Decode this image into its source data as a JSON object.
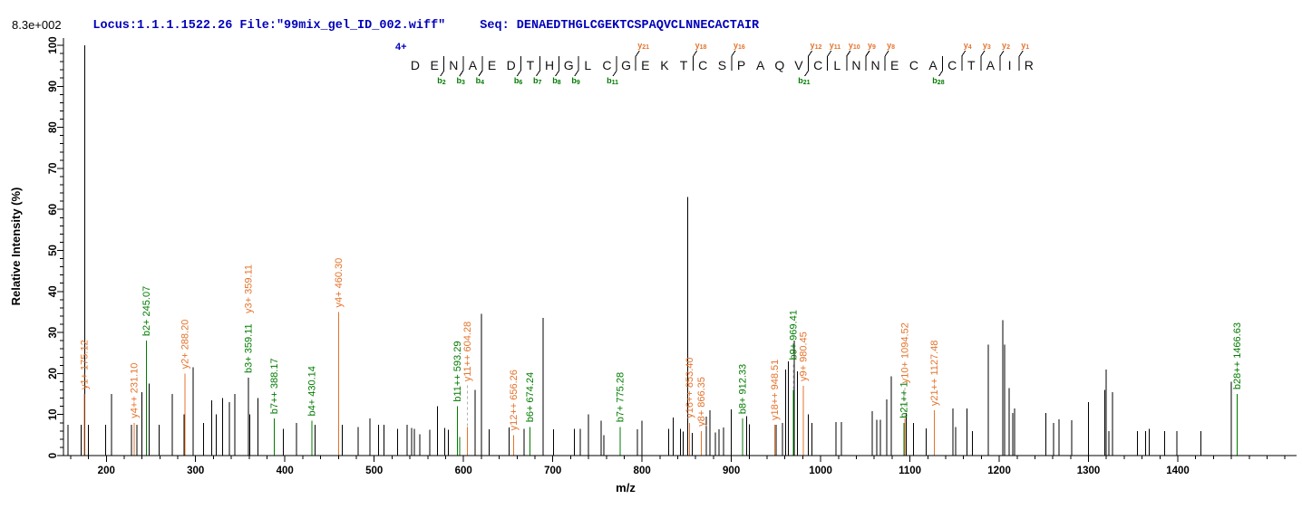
{
  "header": {
    "locus": "Locus:1.1.1.1522.26 File:\"99mix_gel_ID_002.wiff\"",
    "seq_prefix": "Seq: "
  },
  "scale_label": "8.3e+002",
  "charge_label": "4+",
  "colors": {
    "b_ion": "#007b00",
    "y_ion": "#e4732c",
    "peak": "#000000",
    "header_text": "#0000bb",
    "dash_connector": "#b0b0b0",
    "axis": "#000000"
  },
  "chart_data": {
    "type": "bar",
    "title": "8.3e+002",
    "xlabel": "m/z",
    "ylabel": "Relative  Intensity (%)",
    "xlim": [
      152,
      1533
    ],
    "ylim": [
      0,
      100
    ],
    "x_major_ticks": [
      200,
      300,
      400,
      500,
      600,
      700,
      800,
      900,
      1000,
      1100,
      1200,
      1300,
      1400
    ],
    "x_minor_step": 20,
    "y_major_ticks": [
      0,
      10,
      20,
      30,
      40,
      50,
      60,
      70,
      80,
      90,
      100
    ],
    "y_minor_step": 2,
    "grid": false,
    "precursor_charge": "4+",
    "sequence": "DENAEDTHGLCGEKTCSPAQVCLNNECACTAIR",
    "fragment_markers": [
      {
        "after": 2,
        "b": "b2"
      },
      {
        "after": 3,
        "b": "b3"
      },
      {
        "after": 4,
        "b": "b4"
      },
      {
        "after": 6,
        "b": "b6"
      },
      {
        "after": 7,
        "b": "b7"
      },
      {
        "after": 8,
        "b": "b8"
      },
      {
        "after": 9,
        "b": "b9"
      },
      {
        "after": 11,
        "b": "b11"
      },
      {
        "after": 12,
        "y": "y21"
      },
      {
        "after": 15,
        "y": "y18"
      },
      {
        "after": 17,
        "y": "y16"
      },
      {
        "after": 21,
        "b": "b21",
        "y": "y12"
      },
      {
        "after": 22,
        "y": "y11"
      },
      {
        "after": 23,
        "y": "y10"
      },
      {
        "after": 24,
        "y": "y9"
      },
      {
        "after": 25,
        "y": "y8"
      },
      {
        "after": 28,
        "b": "b28"
      },
      {
        "after": 29,
        "y": "y4"
      },
      {
        "after": 30,
        "y": "y3"
      },
      {
        "after": 31,
        "y": "y2"
      },
      {
        "after": 32,
        "y": "y1"
      }
    ],
    "labeled_peaks": [
      {
        "mz": 175.12,
        "intensity": 15,
        "label": "y1+ 175.12",
        "type": "y"
      },
      {
        "mz": 231.1,
        "intensity": 8,
        "label": "y4++ 231.10",
        "type": "y"
      },
      {
        "mz": 245.07,
        "intensity": 28,
        "label": "b2+ 245.07",
        "type": "b"
      },
      {
        "mz": 288.2,
        "intensity": 20,
        "label": "y2+ 288.20",
        "type": "y"
      },
      {
        "mz": 359.11,
        "intensity": 19,
        "label": "b3+ 359.11",
        "type": "b",
        "no_stick": true
      },
      {
        "mz": 359.11,
        "intensity": 19,
        "label": "y3+ 359.11",
        "type": "y",
        "no_stick": true,
        "stack": 66
      },
      {
        "mz": 388.17,
        "intensity": 9,
        "label": "b7++ 388.17",
        "type": "b"
      },
      {
        "mz": 430.14,
        "intensity": 8.5,
        "label": "b4+ 430.14",
        "type": "b"
      },
      {
        "mz": 460.3,
        "intensity": 35,
        "label": "y4+ 460.30",
        "type": "y"
      },
      {
        "mz": 593.29,
        "intensity": 12,
        "label": "b11++ 593.29",
        "type": "b"
      },
      {
        "mz": 595.8,
        "intensity": 4.5,
        "label": "",
        "type": "b"
      },
      {
        "mz": 604.28,
        "intensity": 7,
        "label": "y11++ 604.28",
        "type": "y",
        "dash": 45
      },
      {
        "mz": 656.26,
        "intensity": 5,
        "label": "y12++ 656.26",
        "type": "y"
      },
      {
        "mz": 674.24,
        "intensity": 7,
        "label": "b6+ 674.24",
        "type": "b"
      },
      {
        "mz": 775.28,
        "intensity": 7,
        "label": "b7+ 775.28",
        "type": "b"
      },
      {
        "mz": 853.4,
        "intensity": 8,
        "label": "y16++ 853.40",
        "type": "y"
      },
      {
        "mz": 866.35,
        "intensity": 6,
        "label": "y8+ 866.35",
        "type": "y"
      },
      {
        "mz": 912.33,
        "intensity": 9,
        "label": "b8+ 912.33",
        "type": "b"
      },
      {
        "mz": 948.51,
        "intensity": 7.5,
        "label": "y18++ 948.51",
        "type": "y"
      },
      {
        "mz": 969.41,
        "intensity": 16,
        "label": "b9+ 969.41",
        "type": "b",
        "dash": 28
      },
      {
        "mz": 980.45,
        "intensity": 17,
        "label": "y9+ 980.45",
        "type": "y"
      },
      {
        "mz": 1093.3,
        "intensity": 8,
        "label": "b21++ 1",
        "type": "b"
      },
      {
        "mz": 1094.52,
        "intensity": 9,
        "label": "y10+ 1094.52",
        "type": "y",
        "dash": 34
      },
      {
        "mz": 1127.48,
        "intensity": 11,
        "label": "y21++ 1127.48",
        "type": "y"
      },
      {
        "mz": 1466.63,
        "intensity": 15,
        "label": "b28++ 1466.63",
        "type": "b"
      }
    ],
    "peaks": [
      [
        157,
        7.5
      ],
      [
        172,
        7.5
      ],
      [
        176,
        100
      ],
      [
        180,
        7.5
      ],
      [
        199,
        7.5
      ],
      [
        206,
        15
      ],
      [
        228,
        7.5
      ],
      [
        234,
        7.5
      ],
      [
        240,
        15.5
      ],
      [
        248,
        17.5
      ],
      [
        259,
        7.5
      ],
      [
        274,
        15
      ],
      [
        287,
        10
      ],
      [
        297,
        21.5
      ],
      [
        309,
        8
      ],
      [
        318,
        13.5
      ],
      [
        323,
        10
      ],
      [
        330,
        14
      ],
      [
        338,
        13
      ],
      [
        344,
        15
      ],
      [
        359.11,
        19
      ],
      [
        360.8,
        10
      ],
      [
        370,
        14
      ],
      [
        398,
        6.5
      ],
      [
        413,
        8
      ],
      [
        434,
        7.5
      ],
      [
        464,
        7.5
      ],
      [
        482,
        7
      ],
      [
        495,
        9
      ],
      [
        505,
        7.5
      ],
      [
        511,
        7.5
      ],
      [
        526,
        6.5
      ],
      [
        537,
        7.5
      ],
      [
        542,
        6.7
      ],
      [
        545,
        6.5
      ],
      [
        551,
        5.2
      ],
      [
        562,
        6.3
      ],
      [
        571,
        12
      ],
      [
        579,
        6.7
      ],
      [
        583,
        6.3
      ],
      [
        613,
        16
      ],
      [
        620,
        34.5
      ],
      [
        629,
        6.4
      ],
      [
        651,
        6.8
      ],
      [
        668,
        6.5
      ],
      [
        689,
        33.5
      ],
      [
        701,
        6.4
      ],
      [
        724,
        6.5
      ],
      [
        731,
        6.5
      ],
      [
        740,
        10
      ],
      [
        754,
        8.5
      ],
      [
        757,
        5
      ],
      [
        795,
        6.4
      ],
      [
        800,
        8.5
      ],
      [
        830,
        6.5
      ],
      [
        835,
        9.3
      ],
      [
        843,
        6.5
      ],
      [
        846,
        5.8
      ],
      [
        851,
        63
      ],
      [
        856,
        5.5
      ],
      [
        872,
        9.5
      ],
      [
        876,
        11
      ],
      [
        882,
        5.6
      ],
      [
        886,
        6.4
      ],
      [
        891,
        6.8
      ],
      [
        900,
        11.3
      ],
      [
        917,
        9.6
      ],
      [
        920,
        7.6
      ],
      [
        950,
        7.5
      ],
      [
        957,
        8
      ],
      [
        961,
        21
      ],
      [
        964,
        23
      ],
      [
        970.6,
        28
      ],
      [
        974,
        20.5
      ],
      [
        986,
        10
      ],
      [
        990,
        8
      ],
      [
        1017,
        8.2
      ],
      [
        1023,
        8.2
      ],
      [
        1058,
        10.8
      ],
      [
        1063,
        8.7
      ],
      [
        1067,
        8.7
      ],
      [
        1074,
        13.7
      ],
      [
        1079,
        19.3
      ],
      [
        1096,
        10.4
      ],
      [
        1104,
        7.9
      ],
      [
        1118,
        6.6
      ],
      [
        1148,
        11.5
      ],
      [
        1151,
        7
      ],
      [
        1164,
        11.5
      ],
      [
        1170,
        6
      ],
      [
        1188,
        27
      ],
      [
        1204,
        33
      ],
      [
        1206,
        27
      ],
      [
        1211,
        16.5
      ],
      [
        1215,
        10.4
      ],
      [
        1217,
        11.5
      ],
      [
        1252,
        10.4
      ],
      [
        1261,
        8
      ],
      [
        1267,
        8.8
      ],
      [
        1281,
        8.6
      ],
      [
        1300,
        13
      ],
      [
        1318,
        16
      ],
      [
        1320,
        21
      ],
      [
        1323,
        6
      ],
      [
        1327,
        15.4
      ],
      [
        1355,
        6
      ],
      [
        1364,
        6
      ],
      [
        1368,
        6.5
      ],
      [
        1385,
        6
      ],
      [
        1399,
        6
      ],
      [
        1426,
        6
      ],
      [
        1460,
        18
      ]
    ]
  }
}
